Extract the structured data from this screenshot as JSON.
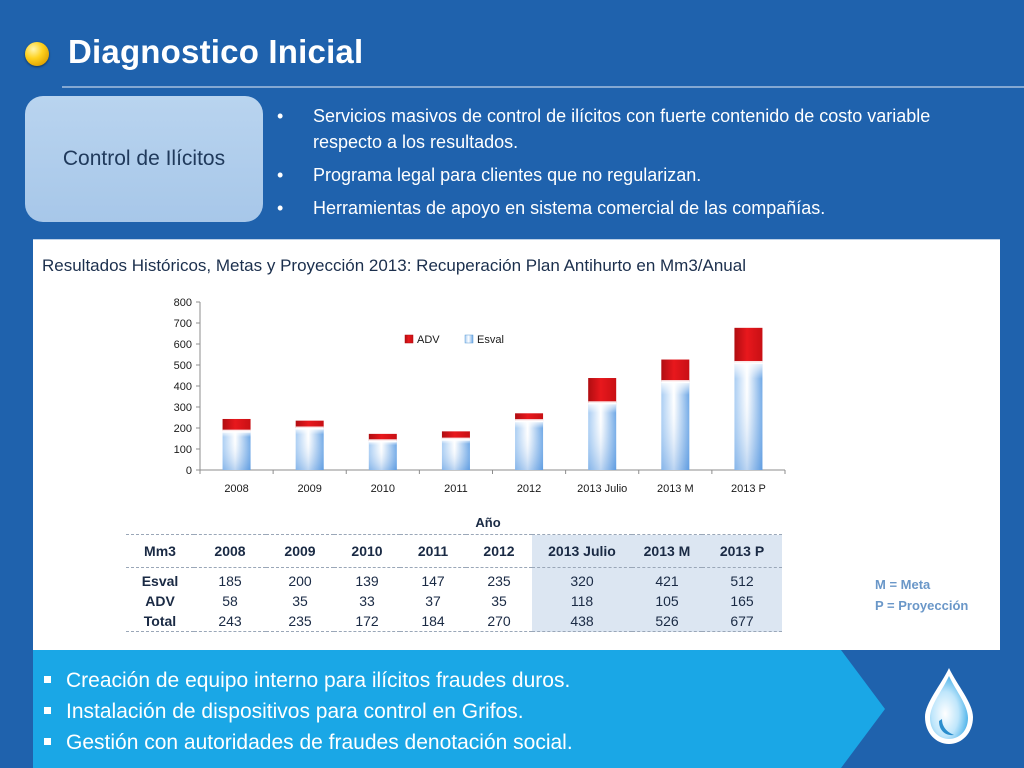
{
  "title": "Diagnostico Inicial",
  "control_box": "Control de Ilícitos",
  "top_bullets": [
    "Servicios masivos de control de ilícitos con fuerte contenido de costo variable respecto a los resultados.",
    "Programa legal para clientes que no regularizan.",
    "Herramientas de apoyo en sistema comercial de las compañías."
  ],
  "chart_caption": "Resultados Históricos, Metas y Proyección 2013: Recuperación Plan Antihurto en Mm3/Anual",
  "chart_data": {
    "type": "bar",
    "stacked": true,
    "categories": [
      "2008",
      "2009",
      "2010",
      "2011",
      "2012",
      "2013 Julio",
      "2013 M",
      "2013 P"
    ],
    "series": [
      {
        "name": "Esval",
        "values": [
          185,
          200,
          139,
          147,
          235,
          320,
          421,
          512
        ],
        "color": "#5b9bd5"
      },
      {
        "name": "ADV",
        "values": [
          58,
          35,
          33,
          37,
          35,
          118,
          105,
          165
        ],
        "color": "#e3161b"
      }
    ],
    "ylim": [
      0,
      800
    ],
    "yticks": [
      0,
      100,
      200,
      300,
      400,
      500,
      600,
      700,
      800
    ],
    "legend": "top-center",
    "legend_order": [
      "ADV",
      "Esval"
    ],
    "grid": false
  },
  "table": {
    "axis_label": "Año",
    "unit_label": "Mm3",
    "columns": [
      "2008",
      "2009",
      "2010",
      "2011",
      "2012",
      "2013 Julio",
      "2013 M",
      "2013 P"
    ],
    "highlight_from": 5,
    "rows": [
      {
        "label": "Esval",
        "values": [
          "185",
          "200",
          "139",
          "147",
          "235",
          "320",
          "421",
          "512"
        ]
      },
      {
        "label": "ADV",
        "values": [
          "58",
          "35",
          "33",
          "37",
          "35",
          "118",
          "105",
          "165"
        ]
      },
      {
        "label": "Total",
        "values": [
          "243",
          "235",
          "172",
          "184",
          "270",
          "438",
          "526",
          "677"
        ]
      }
    ]
  },
  "notes": [
    "M = Meta",
    "P = Proyección"
  ],
  "bottom_bullets": [
    "Creación de equipo interno para ilícitos fraudes duros.",
    "Instalación de dispositivos para control en Grifos.",
    "Gestión con autoridades de fraudes  denotación social."
  ],
  "colors": {
    "background": "#1f62ad",
    "band": "#1aa7e6",
    "esval": "#5b9bd5",
    "adv": "#e3161b"
  },
  "icons": {
    "title_bullet": "gold-orb-icon",
    "logo": "water-drop-icon"
  }
}
